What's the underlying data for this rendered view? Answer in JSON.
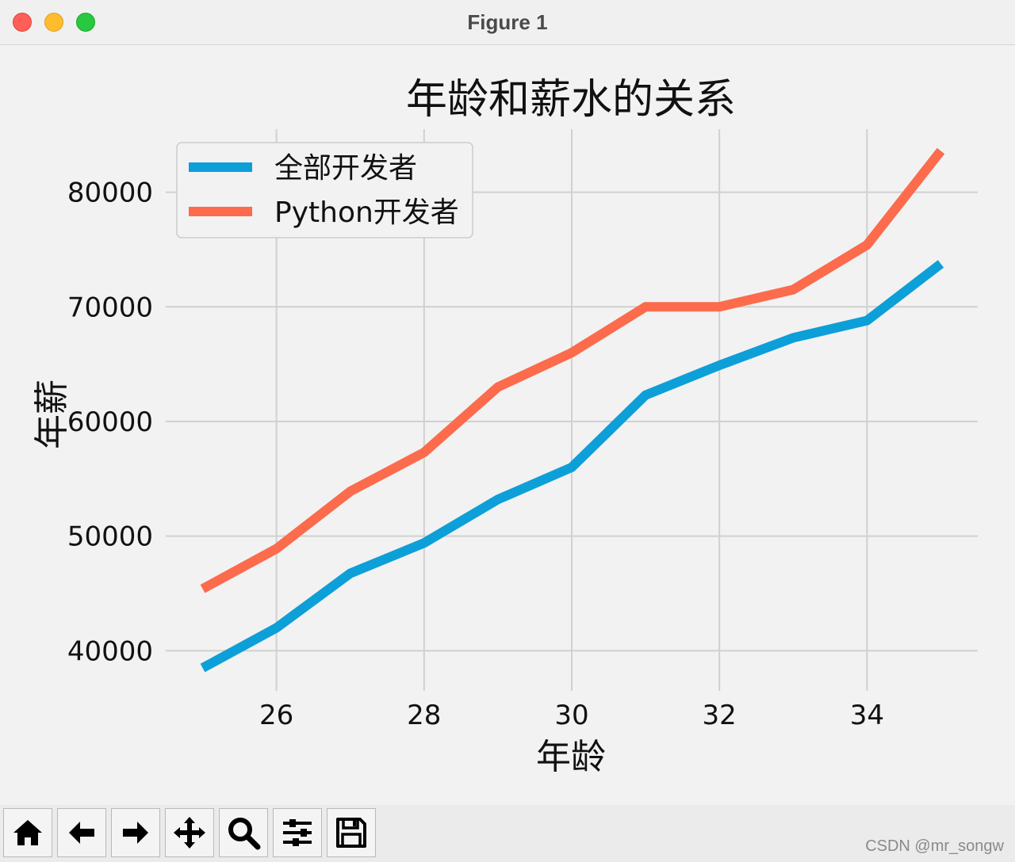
{
  "window": {
    "title": "Figure 1"
  },
  "toolbar": {
    "buttons": [
      {
        "name": "home-icon",
        "tooltip": "Home"
      },
      {
        "name": "back-arrow-icon",
        "tooltip": "Back"
      },
      {
        "name": "forward-arrow-icon",
        "tooltip": "Forward"
      },
      {
        "name": "pan-move-icon",
        "tooltip": "Pan"
      },
      {
        "name": "zoom-magnifier-icon",
        "tooltip": "Zoom"
      },
      {
        "name": "configure-sliders-icon",
        "tooltip": "Configure subplots"
      },
      {
        "name": "save-floppy-icon",
        "tooltip": "Save"
      }
    ]
  },
  "watermark": "CSDN @mr_songw",
  "chart_data": {
    "type": "line",
    "title": "年龄和薪水的关系",
    "xlabel": "年龄",
    "ylabel": "年薪",
    "x": [
      25,
      26,
      27,
      28,
      29,
      30,
      31,
      32,
      33,
      34,
      35
    ],
    "xticks": [
      26,
      28,
      30,
      32,
      34
    ],
    "yticks": [
      40000,
      50000,
      60000,
      70000,
      80000
    ],
    "xlim": [
      24.5,
      35.5
    ],
    "ylim": [
      36500,
      85500
    ],
    "grid": true,
    "legend_position": "upper left",
    "series": [
      {
        "name": "全部开发者",
        "color": "#0d9fd8",
        "values": [
          38500,
          42000,
          46750,
          49400,
          53200,
          56000,
          62300,
          64900,
          67300,
          68800,
          73750
        ]
      },
      {
        "name": "Python开发者",
        "color": "#fc6b4c",
        "values": [
          45400,
          48900,
          53900,
          57300,
          63000,
          66000,
          70000,
          70000,
          71500,
          75400,
          83600
        ]
      }
    ]
  }
}
